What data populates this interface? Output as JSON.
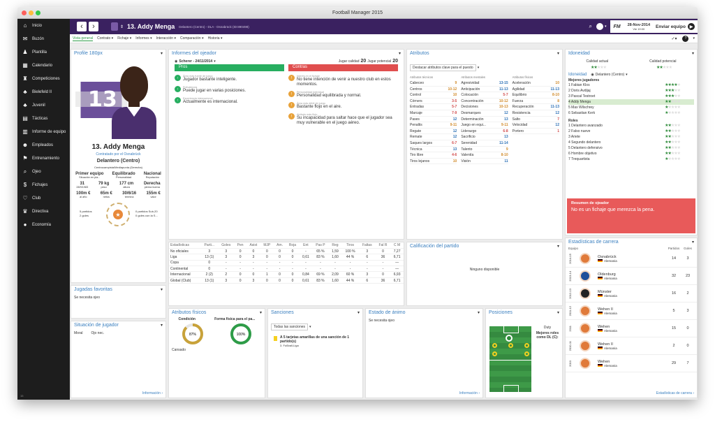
{
  "window": {
    "title": "Football Manager 2015"
  },
  "sidebar": {
    "items": [
      {
        "label": "Inicio",
        "icon": "home-icon"
      },
      {
        "label": "Buzón",
        "icon": "mail-icon"
      },
      {
        "label": "Plantilla",
        "icon": "squad-icon"
      },
      {
        "label": "Calendario",
        "icon": "calendar-icon"
      },
      {
        "label": "Competiciones",
        "icon": "trophy-icon"
      },
      {
        "label": "Bielefeld II",
        "icon": "team-icon"
      },
      {
        "label": "Juvenil",
        "icon": "team-icon"
      },
      {
        "label": "Tácticas",
        "icon": "tactics-icon"
      },
      {
        "label": "Informe de equipo",
        "icon": "report-icon"
      },
      {
        "label": "Empleados",
        "icon": "staff-icon"
      },
      {
        "label": "Entrenamiento",
        "icon": "training-icon"
      },
      {
        "label": "Ojeo",
        "icon": "search-icon"
      },
      {
        "label": "Fichajes",
        "icon": "transfer-icon"
      },
      {
        "label": "Club",
        "icon": "club-icon"
      },
      {
        "label": "Directiva",
        "icon": "board-icon"
      },
      {
        "label": "Economía",
        "icon": "finance-icon"
      }
    ],
    "version": "15"
  },
  "topbar": {
    "player_number": "13.",
    "player_name": "Addy Menga",
    "player_desc": "Delantero (Centro) - DLA - Osnabrück (ID:890498)",
    "fm_label": "FM",
    "date": "28-Nov-2014",
    "day": "Vie 19:00",
    "continue_label": "Enviar equipo"
  },
  "subnav": {
    "tabs": [
      "Vista general",
      "Contrato",
      "Fichaje",
      "Informes",
      "Interacción",
      "Comparación",
      "Historia"
    ]
  },
  "profile": {
    "header": "Profile 180px",
    "jersey": "13",
    "name": "13. Addy Menga",
    "contracted": "Contratado por el Osnabrück",
    "position": "Delantero (Centro)",
    "role_detail": "Centrocampista/Mediapunta (Derecha)",
    "status": [
      {
        "value": "Primer equipo",
        "label": "Situación en pla..."
      },
      {
        "value": "Equilibrado",
        "label": "Personalidad"
      },
      {
        "value": "Nacional",
        "label": "Reputación"
      }
    ],
    "stats": [
      {
        "value": "31",
        "label": "28/9/1983"
      },
      {
        "value": "79 kg",
        "label": "peso"
      },
      {
        "value": "177 cm",
        "label": "altura"
      },
      {
        "value": "Derecha",
        "label": "pierna buena"
      }
    ],
    "money": [
      {
        "value": "100m €",
        "label": "al año"
      },
      {
        "value": "65m €",
        "label": "netos"
      },
      {
        "value": "30/6/16",
        "label": "termina"
      },
      {
        "value": "155m €",
        "label": "valor"
      }
    ],
    "left_note1": "5 partidos",
    "left_note2": "2 goles",
    "right_note1": "0 partidos Sub-20",
    "right_note2": "0 goles con la S..."
  },
  "scout": {
    "header": "Informes del ojeador",
    "scout_name": "Scherer - 24/11/2014",
    "current_label": "Jugar calidad",
    "current_value": "20",
    "potential_label": "Jugar potencial",
    "potential_value": "20",
    "pros_label": "Pros",
    "cons_label": "Contras",
    "pros": [
      {
        "title": "Área más fuerte de juego",
        "text": "Jugador bastante inteligente."
      },
      {
        "title": "Polivalencia",
        "text": "Puede jugar en varias posiciones."
      },
      {
        "title": "Experiencia internacional",
        "text": "Actualmente es internacional."
      }
    ],
    "cons": [
      {
        "title": "Interés en el fichaje",
        "text": "No tiene intención de venir a nuestro club en estos momentos."
      },
      {
        "title": "Personalidad individual",
        "text": "Personalidad equilibrada y normal."
      },
      {
        "title": "Área más débil de juego",
        "text": "Bastante flojo en el aire."
      },
      {
        "title": "Atributo más flojo",
        "text": "Su incapacidad para saltar hace que el jugador sea muy vulnerable en el juego aéreo."
      }
    ]
  },
  "attributes": {
    "header": "Atributos",
    "highlight": "Destacar atributos clave para el puesto",
    "col_titles": [
      "Atributos técnicos",
      "Atributos mentales",
      "Atributos físicos"
    ],
    "technical": [
      [
        "Cabeceo",
        "9"
      ],
      [
        "Centros",
        "10-12"
      ],
      [
        "Control",
        "10"
      ],
      [
        "Córners",
        "3-5"
      ],
      [
        "Entradas",
        "5-7"
      ],
      [
        "Marcaje",
        "7-9"
      ],
      [
        "Pases",
        "12"
      ],
      [
        "Penaltis",
        "9-11"
      ],
      [
        "Regate",
        "12"
      ],
      [
        "Remate",
        "12"
      ],
      [
        "Saques largos",
        "6-7"
      ],
      [
        "Técnica",
        "13"
      ],
      [
        "Tiro libre",
        "4-6"
      ],
      [
        "Tiros lejanos",
        "10"
      ]
    ],
    "mental": [
      [
        "Agresividad",
        "13-15"
      ],
      [
        "Anticipación",
        "11-13"
      ],
      [
        "Colocación",
        "5-7"
      ],
      [
        "Concentración",
        "10-12"
      ],
      [
        "Decisiones",
        "10-13"
      ],
      [
        "Desmarques",
        "12"
      ],
      [
        "Determinación",
        "13"
      ],
      [
        "Juego en equi...",
        "9-11"
      ],
      [
        "Liderazgo",
        "6-8"
      ],
      [
        "Sacrificio",
        "13"
      ],
      [
        "Serenidad",
        "11-14"
      ],
      [
        "Talento",
        "9"
      ],
      [
        "Valentía",
        "8-10"
      ],
      [
        "Visión",
        "11"
      ]
    ],
    "physical": [
      [
        "Aceleración",
        "10"
      ],
      [
        "Agilidad",
        "11-13"
      ],
      [
        "Equilibrio",
        "8-10"
      ],
      [
        "Fuerza",
        "8"
      ],
      [
        "Recuperación",
        "11-13"
      ],
      [
        "Resistencia",
        "12"
      ],
      [
        "Salto",
        "7"
      ],
      [
        "Velocidad",
        "12"
      ],
      [
        "Portero",
        "1"
      ]
    ]
  },
  "stats_table": {
    "headers": [
      "Estadísticas",
      "Parti...",
      "Goles",
      "Pen",
      "Asist",
      "MJP",
      "Am.",
      "Roja",
      "Ent",
      "Pas P",
      "Reg",
      "Tiros",
      "Faltas",
      "Fal R",
      "C M"
    ],
    "rows": [
      [
        "No oficiales",
        "3",
        "3",
        "0",
        "0",
        "0",
        "0",
        "0",
        "-",
        "65 %",
        "1,59",
        "100 %",
        "3",
        "0",
        "7,27"
      ],
      [
        "Liga",
        "13 (1)",
        "3",
        "0",
        "3",
        "0",
        "0",
        "0",
        "0,61",
        "83 %",
        "1,60",
        "44 %",
        "6",
        "36",
        "6,71"
      ],
      [
        "Copa",
        "0",
        "-",
        "-",
        "-",
        "-",
        "-",
        "-",
        "-",
        "-",
        "-",
        "-",
        "-",
        "-",
        "—"
      ],
      [
        "Continental",
        "0",
        "-",
        "-",
        "-",
        "-",
        "-",
        "-",
        "-",
        "-",
        "-",
        "-",
        "-",
        "-",
        "—"
      ],
      [
        "Internacional",
        "2 (2)",
        "2",
        "0",
        "0",
        "1",
        "0",
        "0",
        "0,84",
        "69 %",
        "2,09",
        "60 %",
        "3",
        "0",
        "6,93"
      ],
      [
        "Global (Club)",
        "13 (1)",
        "3",
        "0",
        "3",
        "0",
        "0",
        "0",
        "0,61",
        "83 %",
        "1,60",
        "44 %",
        "6",
        "36",
        "6,71"
      ]
    ]
  },
  "match_rating": {
    "header": "Calificación del partido",
    "empty": "Ninguno disponible"
  },
  "ideality": {
    "header": "Idoneidad",
    "current": "Calidad actual",
    "potential": "Calidad potencial",
    "dropdown_label": "Idoneidad",
    "dropdown_value": "Delantero (Centro)",
    "best_title": "Mejores jugadores",
    "best": [
      {
        "name": "1  Fabian Klos",
        "stars": 4
      },
      {
        "name": "2  Doris Avdijaj",
        "stars": 3
      },
      {
        "name": "3  Pascal Testroet",
        "stars": 3
      },
      {
        "name": "4  Addy Menga",
        "stars": 2
      },
      {
        "name": "5  Max Wilschrey",
        "stars": 1
      },
      {
        "name": "6  Sebastian Kerk",
        "stars": 1
      }
    ],
    "roles_title": "Roles",
    "roles": [
      {
        "name": "1  Delantero avanzado",
        "stars": 2
      },
      {
        "name": "2  Falso nueve",
        "stars": 2
      },
      {
        "name": "3  Ariete",
        "stars": 2
      },
      {
        "name": "4  Segundo delantero",
        "stars": 2
      },
      {
        "name": "5  Delantero defensivo",
        "stars": 2
      },
      {
        "name": "6  Hombre objetivo",
        "stars": 2
      },
      {
        "name": "7  Trequartista",
        "stars": 1
      }
    ]
  },
  "scout_summary": {
    "title": "Resumen de ojeador",
    "text": "No es un fichaje que merezca la pena."
  },
  "career": {
    "header": "Estadísticas de carrera",
    "col_team": "Equipo",
    "col_games": "Partidos",
    "col_goals": "Goles",
    "link": "Estadísticas de carrera",
    "rows": [
      {
        "year": "2014-15",
        "club": "Osnabrück",
        "country": "Alemania",
        "games": "14",
        "goals": "3"
      },
      {
        "year": "2013-14",
        "club": "Oldenburg",
        "country": "Alemania",
        "games": "32",
        "goals": "23"
      },
      {
        "year": "2012-13",
        "club": "Münster",
        "country": "Alemania",
        "games": "16",
        "goals": "2"
      },
      {
        "year": "2011-12",
        "club": "Wehen II",
        "country": "Alemania",
        "games": "5",
        "goals": "3"
      },
      {
        "year": "2011",
        "club": "Wehen",
        "country": "Alemania",
        "games": "15",
        "goals": "0"
      },
      {
        "year": "2010-11",
        "club": "Wehen II",
        "country": "Alemania",
        "games": "2",
        "goals": "0"
      },
      {
        "year": "2010",
        "club": "Wehen",
        "country": "Alemania",
        "games": "29",
        "goals": "7"
      }
    ]
  },
  "favorite_moves": {
    "header": "Jugadas favoritas",
    "text": "Se necesita ojeo"
  },
  "player_situation": {
    "header": "Situación de jugador",
    "morale": "Moral",
    "morale_value": "Ojo nec.",
    "link": "Información"
  },
  "physical": {
    "header": "Atributos físicos",
    "condition_label": "Condición",
    "form_label": "Forma física para el pa...",
    "condition": 87,
    "condition_text": "87%",
    "form": 100,
    "form_text": "100%",
    "note": "Cansado"
  },
  "sanctions": {
    "header": "Sanciones",
    "dropdown": "Todas las sanciones",
    "title": "A 5 tarjetas amarillas de una sanción de 1 partido(s)",
    "league": "3. Fußball-Liga"
  },
  "mood": {
    "header": "Estado de ánimo",
    "text": "Se necesita ojeo",
    "link": "Información"
  },
  "positions": {
    "header": "Posiciones",
    "duty": "Duty",
    "best_roles": "Mejores roles como DL (C):"
  },
  "colors": {
    "purple": "#3a2160",
    "pros": "#27ae60",
    "cons": "#e04e4e",
    "green": "#2e8b3a"
  }
}
